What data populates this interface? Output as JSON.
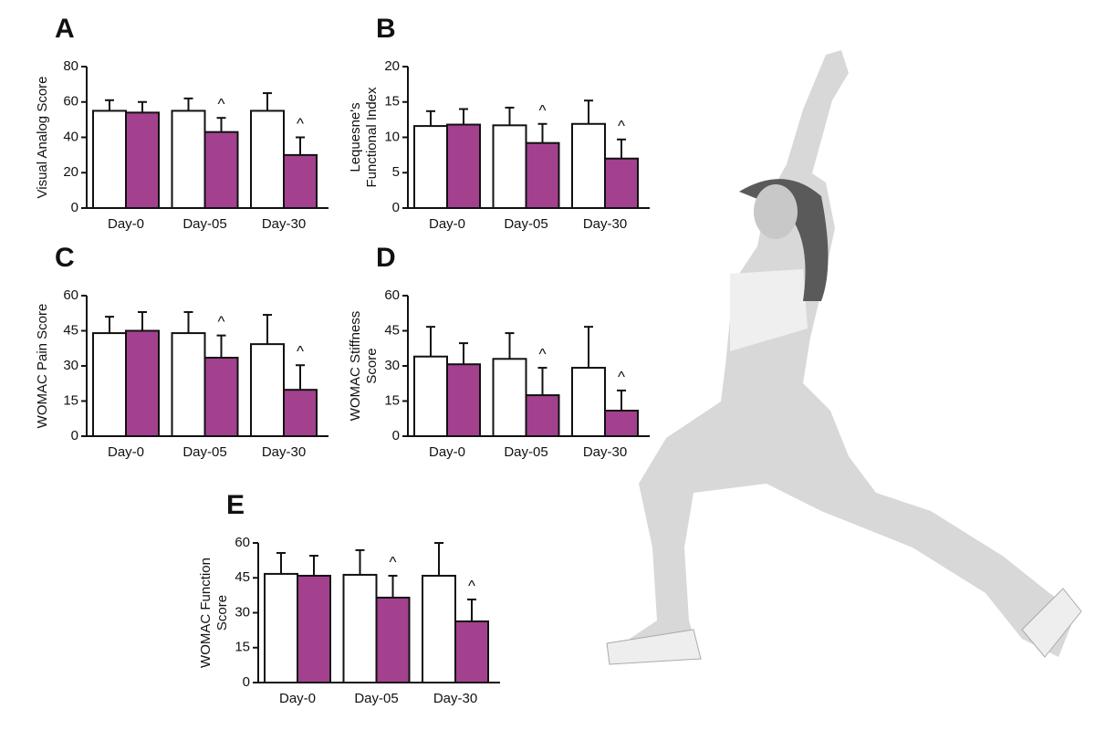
{
  "chart_data": [
    {
      "type": "bar",
      "panel": "A",
      "y_label": [
        "Visual Analog Score"
      ],
      "categories": [
        "Day-0",
        "Day-05",
        "Day-30"
      ],
      "ylim": [
        0,
        80
      ],
      "yticks": [
        0,
        20,
        40,
        60,
        80
      ],
      "series": [
        {
          "color": "#ffffff",
          "values": [
            55,
            55,
            55
          ],
          "errors": [
            6,
            7,
            10
          ]
        },
        {
          "color": "#a3418f",
          "values": [
            54,
            43,
            30
          ],
          "errors": [
            6,
            8,
            10
          ],
          "markers": [
            null,
            "^",
            "^"
          ]
        }
      ]
    },
    {
      "type": "bar",
      "panel": "B",
      "y_label": [
        "Lequesne's",
        "Functional Index"
      ],
      "categories": [
        "Day-0",
        "Day-05",
        "Day-30"
      ],
      "ylim": [
        0,
        20
      ],
      "yticks": [
        0,
        5,
        10,
        15,
        20
      ],
      "series": [
        {
          "color": "#ffffff",
          "values": [
            11.6,
            11.7,
            11.9
          ],
          "errors": [
            2.1,
            2.5,
            3.3
          ]
        },
        {
          "color": "#a3418f",
          "values": [
            11.8,
            9.2,
            7.0
          ],
          "errors": [
            2.2,
            2.7,
            2.7
          ],
          "markers": [
            null,
            "^",
            "^"
          ]
        }
      ]
    },
    {
      "type": "bar",
      "panel": "C",
      "y_label": [
        "WOMAC Pain Score"
      ],
      "categories": [
        "Day-0",
        "Day-05",
        "Day-30"
      ],
      "ylim": [
        0,
        60
      ],
      "yticks": [
        0,
        15,
        30,
        45,
        60
      ],
      "series": [
        {
          "color": "#ffffff",
          "values": [
            44,
            44,
            39.3
          ],
          "errors": [
            7,
            9,
            12.5
          ]
        },
        {
          "color": "#a3418f",
          "values": [
            45,
            33.5,
            19.8
          ],
          "errors": [
            8,
            9.5,
            10.5
          ],
          "markers": [
            null,
            "^",
            "^"
          ]
        }
      ]
    },
    {
      "type": "bar",
      "panel": "D",
      "y_label": [
        "WOMAC Stiffness",
        "Score"
      ],
      "categories": [
        "Day-0",
        "Day-05",
        "Day-30"
      ],
      "ylim": [
        0,
        60
      ],
      "yticks": [
        0,
        15,
        30,
        45,
        60
      ],
      "series": [
        {
          "color": "#ffffff",
          "values": [
            34,
            33,
            29.2
          ],
          "errors": [
            12.7,
            11,
            17.5
          ]
        },
        {
          "color": "#a3418f",
          "values": [
            30.7,
            17.5,
            10.9
          ],
          "errors": [
            9,
            11.7,
            8.6
          ],
          "markers": [
            null,
            "^",
            "^"
          ]
        }
      ]
    },
    {
      "type": "bar",
      "panel": "E",
      "y_label": [
        "WOMAC Function",
        "Score"
      ],
      "categories": [
        "Day-0",
        "Day-05",
        "Day-30"
      ],
      "ylim": [
        0,
        60
      ],
      "yticks": [
        0,
        15,
        30,
        45,
        60
      ],
      "series": [
        {
          "color": "#ffffff",
          "values": [
            46.7,
            46.3,
            45.9
          ],
          "errors": [
            9,
            10.6,
            14.1
          ]
        },
        {
          "color": "#a3418f",
          "values": [
            45.9,
            36.5,
            26.3
          ],
          "errors": [
            8.6,
            9.4,
            9.4
          ],
          "markers": [
            null,
            "^",
            "^"
          ]
        }
      ]
    }
  ]
}
